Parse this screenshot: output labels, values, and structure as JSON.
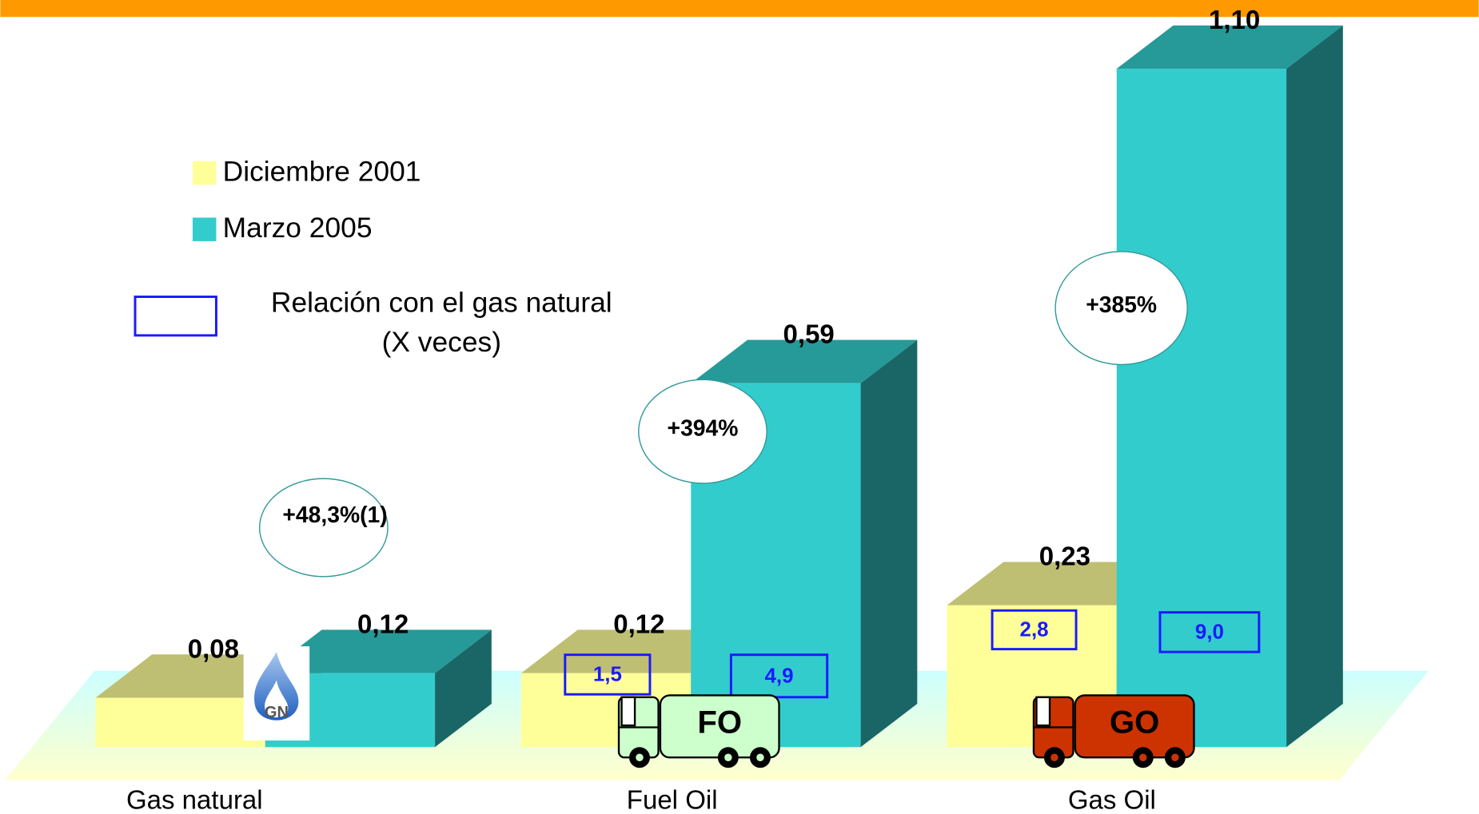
{
  "chart_data": {
    "type": "bar3d",
    "categories": [
      "Gas natural",
      "Fuel Oil",
      "Gas Oil"
    ],
    "series": [
      {
        "name": "Diciembre 2001",
        "color": "#ffff99",
        "values": [
          0.08,
          0.12,
          0.23
        ],
        "value_labels": [
          "0,08",
          "0,12",
          "0,23"
        ]
      },
      {
        "name": "Marzo 2005",
        "color": "#33cccc",
        "values": [
          0.12,
          0.59,
          1.1
        ],
        "value_labels": [
          "0,12",
          "0,59",
          "1,10"
        ]
      }
    ],
    "ylim": [
      0,
      1.1
    ],
    "growth_labels": [
      "+48,3%(1)",
      "+394%",
      "+385%"
    ],
    "ratio_legend": [
      "Relación con el gas natural",
      "(X veces)"
    ],
    "ratios": [
      [
        null,
        1.5,
        2.8
      ],
      [
        null,
        4.9,
        9.0
      ]
    ],
    "ratio_labels": [
      [
        null,
        "1,5",
        "2,8"
      ],
      [
        null,
        "4,9",
        "9,0"
      ]
    ],
    "icons": [
      "GN",
      "FO",
      "GO"
    ],
    "accent_color": "#ff9900"
  }
}
